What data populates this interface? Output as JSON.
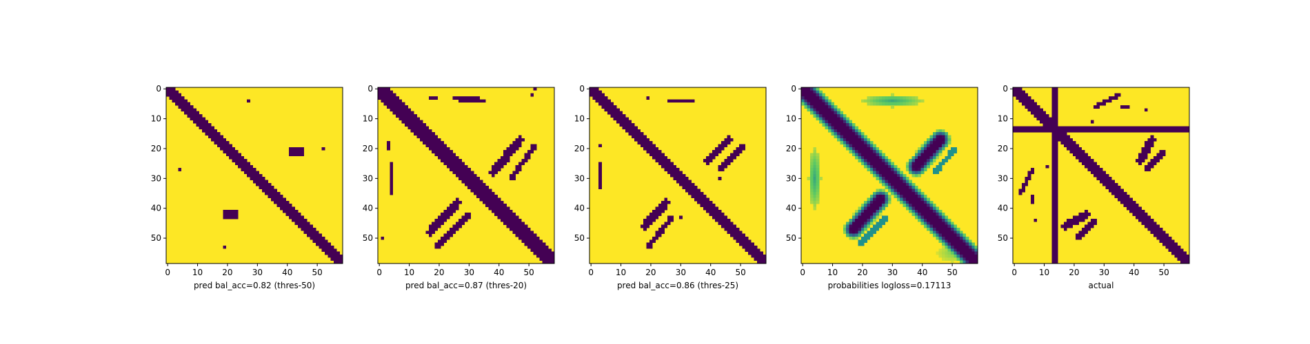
{
  "chart_data": [
    {
      "type": "heatmap",
      "xlabel": "pred bal_acc=0.82 (thres-50)",
      "matrix_size": 59,
      "xticks": [
        0,
        10,
        20,
        30,
        40,
        50
      ],
      "yticks": [
        0,
        10,
        20,
        30,
        40,
        50
      ],
      "value_range": [
        0,
        1
      ],
      "colormap": "viridis",
      "colors": {
        "low": "#440154",
        "high": "#fde725"
      },
      "dark_regions": [
        {
          "kind": "diagonal_band",
          "from": [
            0,
            0
          ],
          "to": [
            58,
            58
          ],
          "width": 3
        },
        {
          "kind": "blob",
          "center": [
            43,
            21
          ],
          "size": [
            5,
            2
          ]
        },
        {
          "kind": "blob",
          "center": [
            21,
            42
          ],
          "size": [
            5,
            2
          ]
        },
        {
          "kind": "point",
          "x": 27,
          "y": 4
        },
        {
          "kind": "point",
          "x": 4,
          "y": 27
        },
        {
          "kind": "point",
          "x": 52,
          "y": 20
        },
        {
          "kind": "point",
          "x": 19,
          "y": 53
        }
      ]
    },
    {
      "type": "heatmap",
      "xlabel": "pred bal_acc=0.87 (thres-20)",
      "matrix_size": 59,
      "xticks": [
        0,
        10,
        20,
        30,
        40,
        50
      ],
      "yticks": [
        0,
        10,
        20,
        30,
        40,
        50
      ],
      "value_range": [
        0,
        1
      ],
      "colormap": "viridis",
      "colors": {
        "low": "#440154",
        "high": "#fde725"
      },
      "dark_regions": [
        {
          "kind": "diagonal_band",
          "from": [
            0,
            0
          ],
          "to": [
            58,
            58
          ],
          "width": 4
        },
        {
          "kind": "segment",
          "from": [
            38,
            28
          ],
          "to": [
            47,
            17
          ],
          "width": 2
        },
        {
          "kind": "segment",
          "from": [
            17,
            48
          ],
          "to": [
            26,
            38
          ],
          "width": 2
        },
        {
          "kind": "segment",
          "from": [
            44,
            30
          ],
          "to": [
            52,
            19
          ],
          "width": 1
        },
        {
          "kind": "segment",
          "from": [
            19,
            53
          ],
          "to": [
            30,
            42
          ],
          "width": 1
        },
        {
          "kind": "segment",
          "from": [
            25,
            3
          ],
          "to": [
            35,
            4
          ],
          "width": 1
        },
        {
          "kind": "segment",
          "from": [
            4,
            25
          ],
          "to": [
            4,
            35
          ],
          "width": 1
        },
        {
          "kind": "blob",
          "center": [
            18,
            3
          ],
          "size": [
            2,
            1
          ]
        },
        {
          "kind": "blob",
          "center": [
            3,
            19
          ],
          "size": [
            1,
            2
          ]
        },
        {
          "kind": "point",
          "x": 51,
          "y": 2
        },
        {
          "kind": "point",
          "x": 52,
          "y": 0
        },
        {
          "kind": "point",
          "x": 1,
          "y": 50
        }
      ]
    },
    {
      "type": "heatmap",
      "xlabel": "pred bal_acc=0.86 (thres-25)",
      "matrix_size": 59,
      "xticks": [
        0,
        10,
        20,
        30,
        40,
        50
      ],
      "yticks": [
        0,
        10,
        20,
        30,
        40,
        50
      ],
      "value_range": [
        0,
        1
      ],
      "colormap": "viridis",
      "colors": {
        "low": "#440154",
        "high": "#fde725"
      },
      "dark_regions": [
        {
          "kind": "diagonal_band",
          "from": [
            0,
            0
          ],
          "to": [
            58,
            58
          ],
          "width": 3
        },
        {
          "kind": "segment",
          "from": [
            39,
            24
          ],
          "to": [
            46,
            17
          ],
          "width": 2
        },
        {
          "kind": "segment",
          "from": [
            18,
            46
          ],
          "to": [
            25,
            38
          ],
          "width": 2
        },
        {
          "kind": "segment",
          "from": [
            43,
            27
          ],
          "to": [
            51,
            19
          ],
          "width": 1
        },
        {
          "kind": "segment",
          "from": [
            19,
            53
          ],
          "to": [
            27,
            43
          ],
          "width": 1
        },
        {
          "kind": "segment",
          "from": [
            26,
            4
          ],
          "to": [
            34,
            4
          ],
          "width": 1
        },
        {
          "kind": "segment",
          "from": [
            3,
            25
          ],
          "to": [
            3,
            33
          ],
          "width": 1
        },
        {
          "kind": "point",
          "x": 19,
          "y": 3
        },
        {
          "kind": "point",
          "x": 3,
          "y": 19
        },
        {
          "kind": "point",
          "x": 43,
          "y": 30
        },
        {
          "kind": "point",
          "x": 30,
          "y": 43
        }
      ]
    },
    {
      "type": "heatmap",
      "xlabel": "probabilities logloss=0.17113",
      "matrix_size": 59,
      "xticks": [
        0,
        10,
        20,
        30,
        40,
        50
      ],
      "yticks": [
        0,
        10,
        20,
        30,
        40,
        50
      ],
      "value_range": [
        0,
        1
      ],
      "colormap": "viridis",
      "colors": {
        "low": "#440154",
        "high": "#fde725"
      },
      "dark_regions": [
        {
          "kind": "diagonal_band",
          "from": [
            0,
            0
          ],
          "to": [
            58,
            58
          ],
          "width": 3,
          "halo": 2
        },
        {
          "kind": "segment",
          "from": [
            38,
            26
          ],
          "to": [
            46,
            17
          ],
          "width": 2,
          "halo": 2
        },
        {
          "kind": "segment",
          "from": [
            17,
            47
          ],
          "to": [
            26,
            37
          ],
          "width": 2,
          "halo": 2
        },
        {
          "kind": "segment",
          "from": [
            44,
            28
          ],
          "to": [
            51,
            20
          ],
          "width": 1,
          "level": 0.5
        },
        {
          "kind": "segment",
          "from": [
            19,
            52
          ],
          "to": [
            28,
            43
          ],
          "width": 1,
          "level": 0.5
        },
        {
          "kind": "haze",
          "center": [
            30,
            4
          ],
          "size": [
            10,
            2
          ],
          "level": 0.6
        },
        {
          "kind": "haze",
          "center": [
            4,
            30
          ],
          "size": [
            2,
            10
          ],
          "level": 0.6
        },
        {
          "kind": "haze",
          "center": [
            50,
            55
          ],
          "size": [
            5,
            3
          ],
          "level": 0.8
        }
      ]
    },
    {
      "type": "heatmap",
      "xlabel": "actual",
      "matrix_size": 59,
      "xticks": [
        0,
        10,
        20,
        30,
        40,
        50
      ],
      "yticks": [
        0,
        10,
        20,
        30,
        40,
        50
      ],
      "value_range": [
        0,
        1
      ],
      "colormap": "viridis",
      "colors": {
        "low": "#440154",
        "high": "#fde725"
      },
      "dark_regions": [
        {
          "kind": "diagonal_band",
          "from": [
            0,
            0
          ],
          "to": [
            58,
            58
          ],
          "width": 3
        },
        {
          "kind": "column",
          "x": 13,
          "width": 2
        },
        {
          "kind": "row",
          "y": 13,
          "height": 2
        },
        {
          "kind": "segment",
          "from": [
            42,
            24
          ],
          "to": [
            46,
            17
          ],
          "width": 2
        },
        {
          "kind": "segment",
          "from": [
            17,
            46
          ],
          "to": [
            24,
            42
          ],
          "width": 2
        },
        {
          "kind": "segment",
          "from": [
            44,
            27
          ],
          "to": [
            50,
            21
          ],
          "width": 1
        },
        {
          "kind": "segment",
          "from": [
            21,
            50
          ],
          "to": [
            27,
            44
          ],
          "width": 1
        },
        {
          "kind": "segment",
          "from": [
            27,
            6
          ],
          "to": [
            35,
            2
          ],
          "width": 1
        },
        {
          "kind": "segment",
          "from": [
            6,
            27
          ],
          "to": [
            2,
            35
          ],
          "width": 1
        },
        {
          "kind": "blob",
          "center": [
            37,
            6
          ],
          "size": [
            3,
            1
          ]
        },
        {
          "kind": "blob",
          "center": [
            6,
            37
          ],
          "size": [
            1,
            3
          ]
        },
        {
          "kind": "point",
          "x": 44,
          "y": 7
        },
        {
          "kind": "point",
          "x": 7,
          "y": 44
        },
        {
          "kind": "point",
          "x": 11,
          "y": 26
        },
        {
          "kind": "point",
          "x": 26,
          "y": 11
        }
      ]
    }
  ]
}
